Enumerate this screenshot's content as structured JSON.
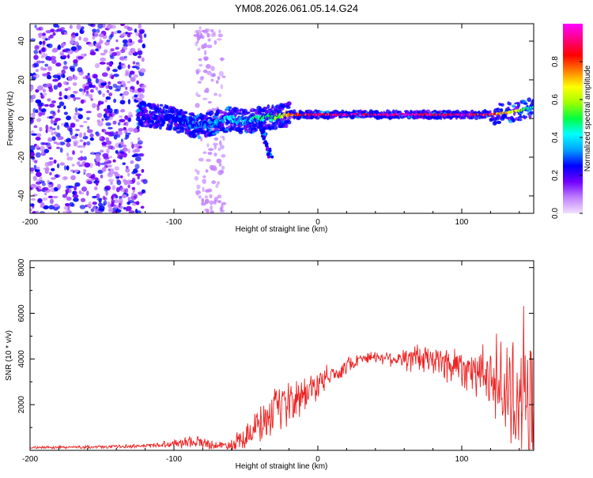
{
  "title": "YM08.2026.061.05.14.G24",
  "chart_data": [
    {
      "type": "heatmap",
      "name": "spectrogram",
      "xlabel": "Height of straight line (km)",
      "ylabel": "Frequency (Hz)",
      "xlim": [
        -200,
        150
      ],
      "ylim": [
        -49,
        49
      ],
      "xticks": [
        -200,
        -100,
        0,
        100
      ],
      "xtick_labels": [
        "-200",
        "-100",
        "0",
        "100"
      ],
      "yticks": [
        -40,
        -20,
        0,
        20,
        40
      ],
      "ytick_labels": [
        "-40",
        "-20",
        "0",
        "20",
        "40"
      ],
      "colorbar": {
        "label": "Normalized spectral amplitude",
        "range": [
          0,
          1
        ],
        "ticks": [
          0.0,
          0.2,
          0.4,
          0.6,
          0.8
        ],
        "tick_labels": [
          "0.0",
          "0.2",
          "0.4",
          "0.6",
          "0.8"
        ],
        "colors": [
          "#f0e0ff",
          "#c080ff",
          "#7000ff",
          "#0000ff",
          "#00a0ff",
          "#00ffff",
          "#00ff40",
          "#a0ff00",
          "#ffff00",
          "#ff8000",
          "#ff0000",
          "#ff0080",
          "#ff00ff"
        ]
      },
      "ridge": {
        "description": "dominant frequency ridge",
        "x": [
          -120,
          -100,
          -90,
          -80,
          -70,
          -60,
          -50,
          -40,
          -30,
          -20,
          -10,
          0,
          20,
          60,
          100,
          120,
          140,
          150
        ],
        "y": [
          2,
          0,
          -3,
          -4,
          -2,
          0,
          -2,
          0,
          1,
          2,
          2,
          2,
          2,
          2,
          2,
          2,
          4,
          6
        ],
        "amplitude": [
          0.2,
          0.25,
          0.3,
          0.3,
          0.35,
          0.4,
          0.4,
          0.45,
          0.5,
          0.75,
          0.85,
          0.9,
          0.95,
          0.95,
          0.95,
          0.85,
          0.6,
          0.4
        ]
      },
      "noise_region": {
        "x_range": [
          -200,
          -120
        ],
        "note": "scattered low-amplitude noise across all frequencies"
      },
      "noise_band": {
        "x_range": [
          -85,
          -65
        ],
        "note": "vertical band of scattered noise"
      }
    },
    {
      "type": "line",
      "name": "snr",
      "xlabel": "Height of straight line (km)",
      "ylabel": "SNR (10 * v/v)",
      "xlim": [
        -200,
        150
      ],
      "ylim": [
        0,
        8300
      ],
      "xticks": [
        -200,
        -100,
        0,
        100
      ],
      "xtick_labels": [
        "-200",
        "-100",
        "0",
        "100"
      ],
      "yticks": [
        2000,
        4000,
        6000,
        8000
      ],
      "ytick_labels": [
        "2000",
        "4000",
        "6000",
        "8000"
      ],
      "color": "#ee2222",
      "envelope": {
        "x": [
          -200,
          -150,
          -120,
          -100,
          -90,
          -80,
          -70,
          -60,
          -50,
          -40,
          -30,
          -20,
          -10,
          0,
          10,
          20,
          30,
          40,
          50,
          60,
          70,
          80,
          90,
          100,
          110,
          120,
          130,
          140,
          150
        ],
        "mean": [
          120,
          150,
          200,
          300,
          400,
          350,
          200,
          250,
          700,
          1100,
          1600,
          2000,
          2400,
          2900,
          3300,
          3700,
          4050,
          4100,
          4050,
          4000,
          4000,
          3950,
          3800,
          3700,
          3500,
          3000,
          2700,
          2000,
          1700
        ],
        "spread": [
          60,
          80,
          100,
          200,
          350,
          300,
          200,
          300,
          700,
          1000,
          1200,
          1200,
          1100,
          700,
          600,
          400,
          300,
          300,
          400,
          600,
          800,
          900,
          1000,
          1100,
          1300,
          1500,
          2500,
          3500,
          3000
        ]
      }
    }
  ]
}
